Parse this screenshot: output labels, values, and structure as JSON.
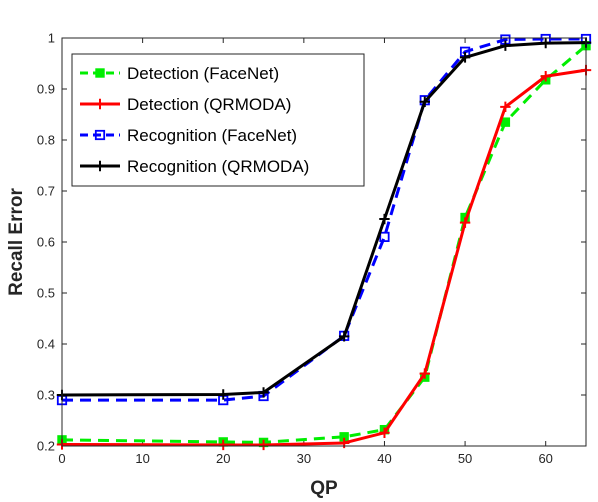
{
  "chart_data": {
    "type": "line",
    "xlabel": "QP",
    "ylabel": "Recall Error",
    "xlim": [
      0,
      65
    ],
    "ylim": [
      0.2,
      1.0
    ],
    "xticks": [
      "0",
      "10",
      "20",
      "30",
      "40",
      "50",
      "60"
    ],
    "yticks": [
      "0.2",
      "0.3",
      "0.4",
      "0.5",
      "0.6",
      "0.7",
      "0.8",
      "0.9",
      "1"
    ],
    "grid": false,
    "legend_position": "top-left",
    "series": [
      {
        "name": "Detection (FaceNet)",
        "color": "#00ee00",
        "line_style": "dashed",
        "marker": "square-filled",
        "x": [
          0,
          20,
          25,
          35,
          40,
          45,
          50,
          55,
          60,
          65
        ],
        "y": [
          0.212,
          0.208,
          0.207,
          0.218,
          0.232,
          0.335,
          0.648,
          0.835,
          0.918,
          0.985
        ]
      },
      {
        "name": "Detection (QRMODA)",
        "color": "#ff0000",
        "line_style": "solid",
        "marker": "plus",
        "x": [
          0,
          20,
          25,
          35,
          40,
          45,
          50,
          55,
          60,
          65
        ],
        "y": [
          0.203,
          0.202,
          0.202,
          0.206,
          0.226,
          0.342,
          0.638,
          0.865,
          0.925,
          0.937
        ]
      },
      {
        "name": "Recognition (FaceNet)",
        "color": "#0000ff",
        "line_style": "dashed",
        "marker": "square-open",
        "x": [
          0,
          20,
          25,
          35,
          40,
          45,
          50,
          55,
          60,
          65
        ],
        "y": [
          0.29,
          0.29,
          0.298,
          0.416,
          0.61,
          0.878,
          0.973,
          0.997,
          0.998,
          0.998
        ]
      },
      {
        "name": "Recognition (QRMODA)",
        "color": "#000000",
        "line_style": "solid",
        "marker": "plus",
        "x": [
          0,
          20,
          25,
          35,
          40,
          45,
          50,
          55,
          60,
          65
        ],
        "y": [
          0.3,
          0.301,
          0.305,
          0.415,
          0.645,
          0.875,
          0.962,
          0.985,
          0.99,
          0.991
        ]
      }
    ]
  }
}
